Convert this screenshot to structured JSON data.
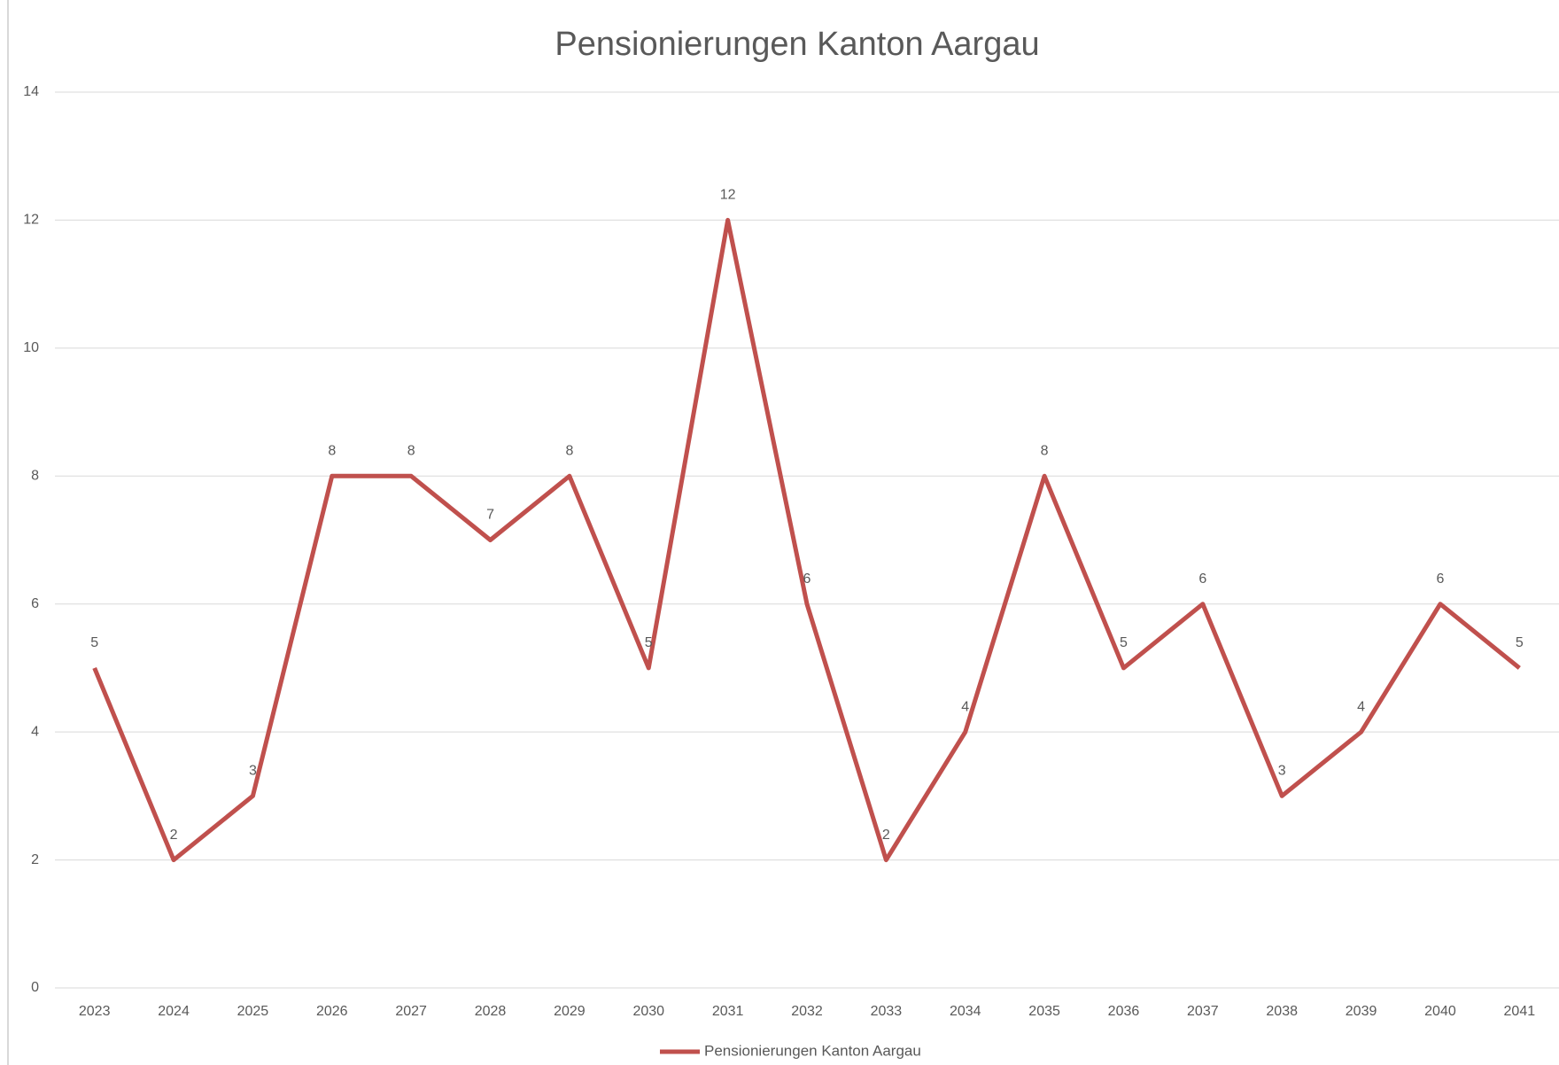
{
  "chart_data": {
    "type": "line",
    "title": "Pensionierungen Kanton Aargau",
    "categories": [
      "2023",
      "2024",
      "2025",
      "2026",
      "2027",
      "2028",
      "2029",
      "2030",
      "2031",
      "2032",
      "2033",
      "2034",
      "2035",
      "2036",
      "2037",
      "2038",
      "2039",
      "2040",
      "2041"
    ],
    "series": [
      {
        "name": "Pensionierungen Kanton Aargau",
        "color": "#c0504d",
        "values": [
          5,
          2,
          3,
          8,
          8,
          7,
          8,
          5,
          12,
          6,
          2,
          4,
          8,
          5,
          6,
          3,
          4,
          6,
          5
        ]
      }
    ],
    "ylim": [
      0,
      14
    ],
    "yticks": [
      0,
      2,
      4,
      6,
      8,
      10,
      12,
      14
    ],
    "grid": true,
    "legend": "bottom"
  }
}
